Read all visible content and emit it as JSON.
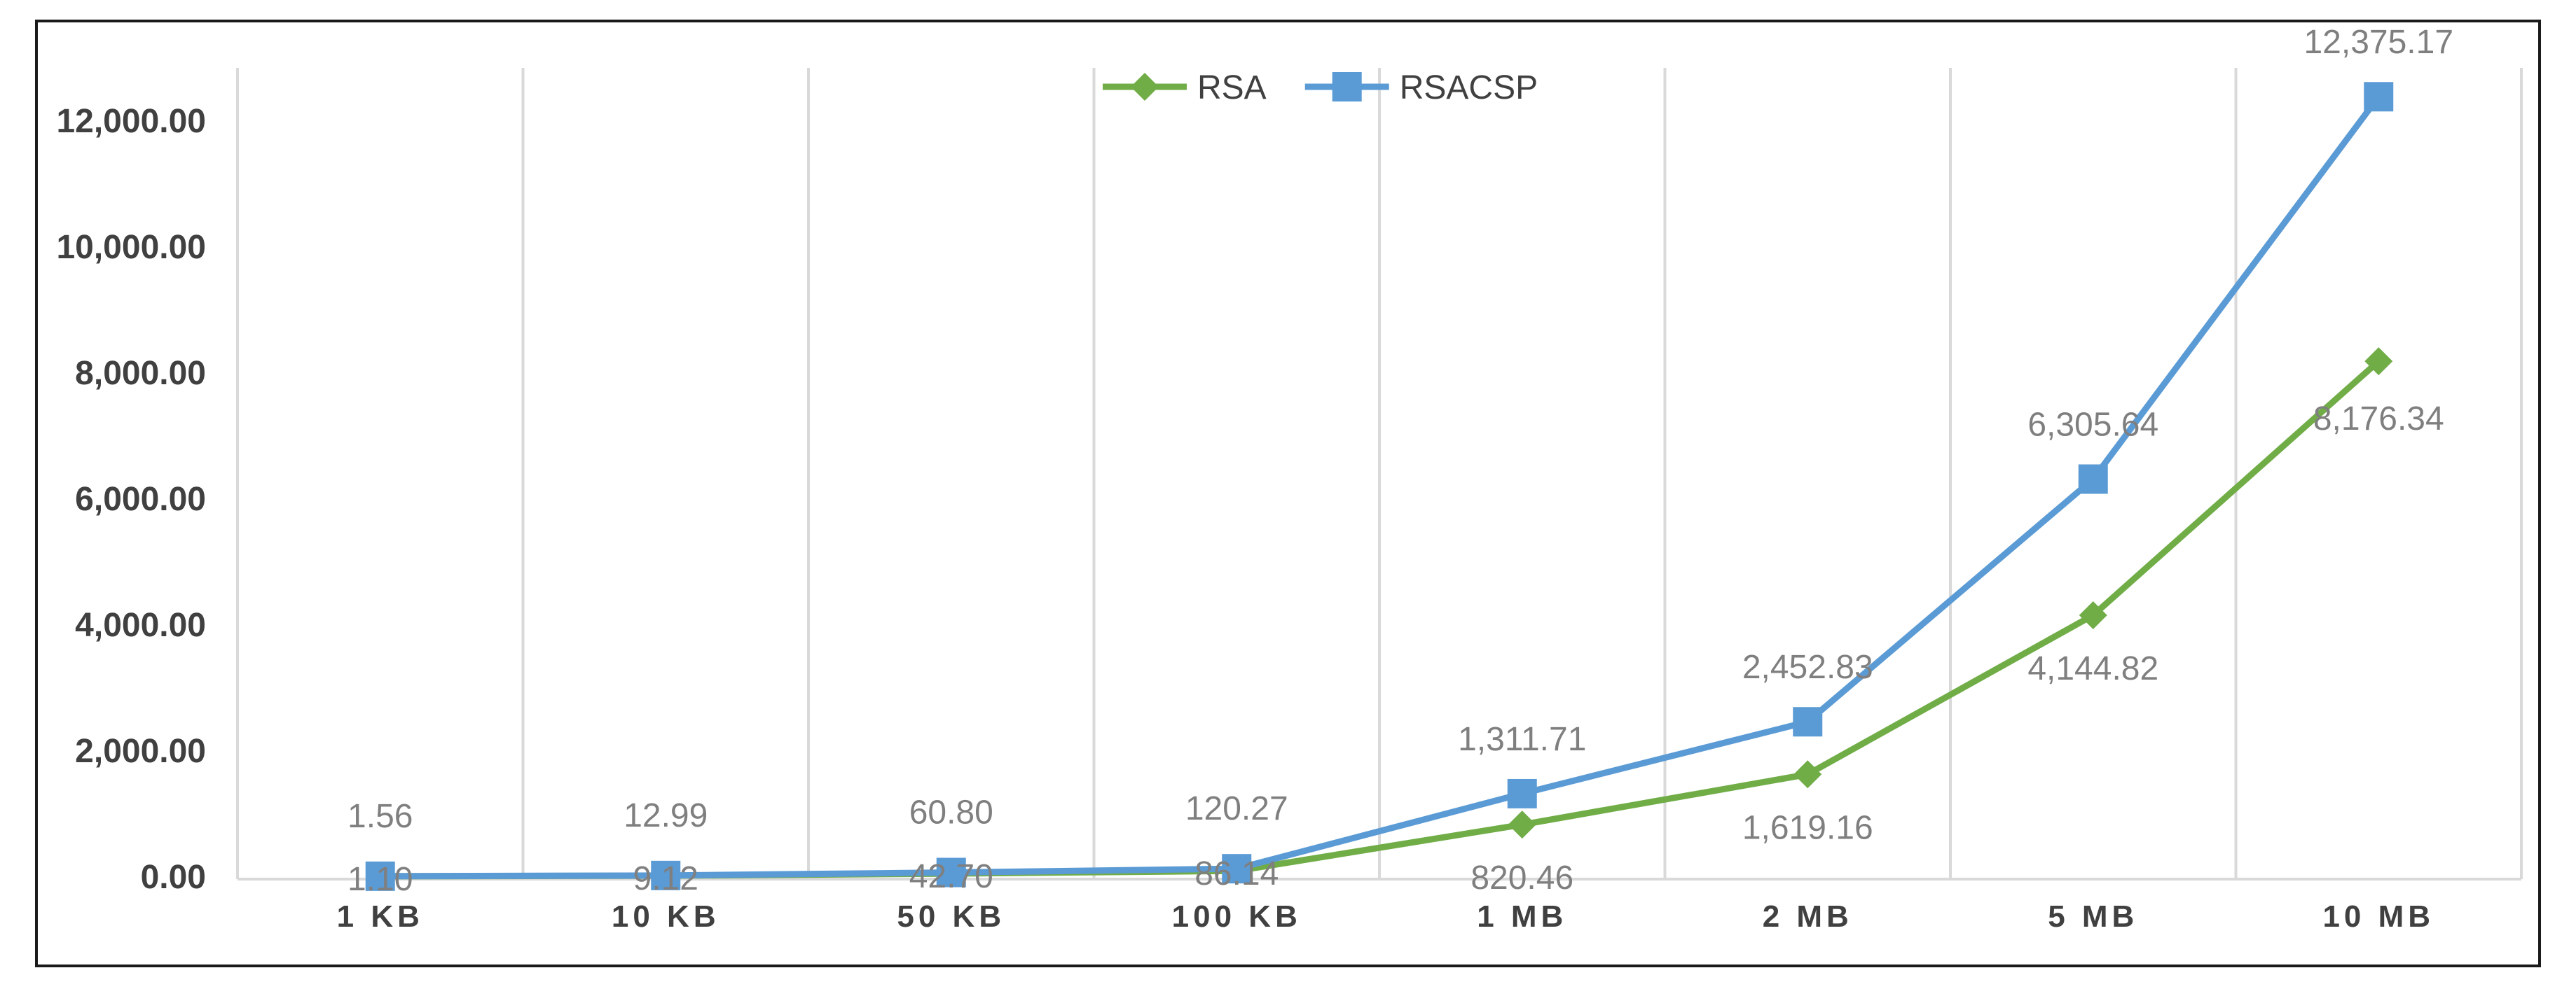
{
  "chart_data": {
    "type": "line",
    "categories": [
      "1 KB",
      "10 KB",
      "50 KB",
      "100 KB",
      "1 MB",
      "2 MB",
      "5 MB",
      "10 MB"
    ],
    "series": [
      {
        "name": "RSA",
        "color": "#70ad47",
        "marker": "diamond",
        "values": [
          1.1,
          9.12,
          42.7,
          86.14,
          820.46,
          1619.16,
          4144.82,
          8176.34
        ],
        "labels": [
          "1.10",
          "9.12",
          "42.70",
          "86.14",
          "820.46",
          "1,619.16",
          "4,144.82",
          "8,176.34"
        ]
      },
      {
        "name": "RSACSP",
        "color": "#5b9bd5",
        "marker": "square",
        "values": [
          1.56,
          12.99,
          60.8,
          120.27,
          1311.71,
          2452.83,
          6305.64,
          12375.17
        ],
        "labels": [
          "1.56",
          "12.99",
          "60.80",
          "120.27",
          "1,311.71",
          "2,452.83",
          "6,305.64",
          "12,375.17"
        ]
      }
    ],
    "ylim": [
      0,
      12000
    ],
    "yticks": [
      0,
      2000,
      4000,
      6000,
      8000,
      10000,
      12000
    ],
    "ytick_labels": [
      "0.00",
      "2,000.00",
      "4,000.00",
      "6,000.00",
      "8,000.00",
      "10,000.00",
      "12,000.00"
    ],
    "grid": "vertical",
    "legend": "top-center",
    "title": "",
    "xlabel": "",
    "ylabel": ""
  }
}
